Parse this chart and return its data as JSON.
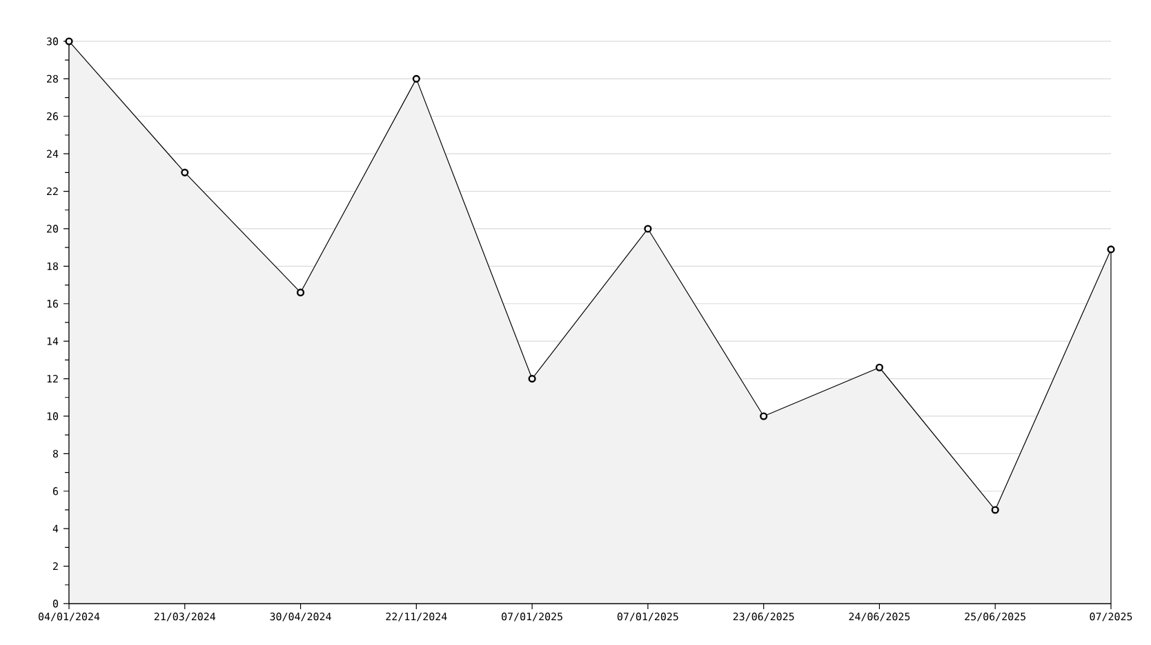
{
  "chart_data": {
    "type": "area",
    "categories": [
      "04/01/2024",
      "21/03/2024",
      "30/04/2024",
      "22/11/2024",
      "07/01/2025",
      "07/01/2025",
      "23/06/2025",
      "24/06/2025",
      "25/06/2025",
      "07/2025"
    ],
    "series": [
      {
        "color": "#000000",
        "values": [
          30,
          23,
          16.6,
          28,
          12,
          20,
          10,
          12.6,
          5,
          18.9
        ]
      }
    ],
    "ylim": [
      0,
      30
    ],
    "yticks": [
      0,
      {
        "value": 1,
        "label": null
      },
      2,
      {
        "value": 3,
        "label": null
      },
      4,
      {
        "value": 5,
        "label": null
      },
      6,
      {
        "value": 7,
        "label": null
      },
      8,
      {
        "value": 9,
        "label": null
      },
      10,
      {
        "value": 11,
        "label": null
      },
      12,
      {
        "value": 13,
        "label": null
      },
      14,
      {
        "value": 15,
        "label": null
      },
      16,
      {
        "value": 17,
        "label": null
      },
      18,
      {
        "value": 19,
        "label": null
      },
      20,
      {
        "value": 21,
        "label": null
      },
      22,
      {
        "value": 23,
        "label": null
      },
      24,
      {
        "value": 25,
        "label": null
      },
      26,
      {
        "value": 27,
        "label": null
      },
      28,
      {
        "value": 29,
        "label": null
      },
      30
    ],
    "grid": "y",
    "marker": "circle"
  }
}
